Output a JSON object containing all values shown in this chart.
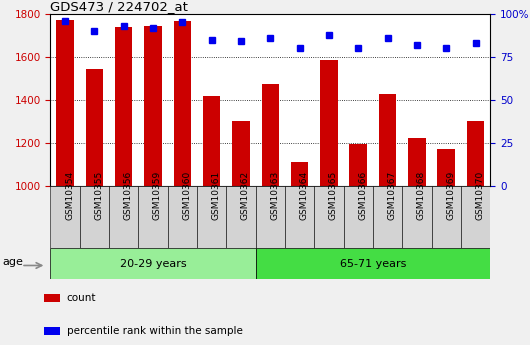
{
  "title": "GDS473 / 224702_at",
  "samples": [
    "GSM10354",
    "GSM10355",
    "GSM10356",
    "GSM10359",
    "GSM10360",
    "GSM10361",
    "GSM10362",
    "GSM10363",
    "GSM10364",
    "GSM10365",
    "GSM10366",
    "GSM10367",
    "GSM10368",
    "GSM10369",
    "GSM10370"
  ],
  "counts": [
    1770,
    1545,
    1740,
    1745,
    1765,
    1420,
    1305,
    1475,
    1115,
    1585,
    1195,
    1430,
    1225,
    1175,
    1305
  ],
  "percentile_ranks": [
    96,
    90,
    93,
    92,
    95,
    85,
    84,
    86,
    80,
    88,
    80,
    86,
    82,
    80,
    83
  ],
  "groups": [
    {
      "label": "20-29 years",
      "start": 0,
      "end": 7,
      "color": "#98EE98"
    },
    {
      "label": "65-71 years",
      "start": 7,
      "end": 15,
      "color": "#44DD44"
    }
  ],
  "ylim_left": [
    1000,
    1800
  ],
  "ylim_right": [
    0,
    100
  ],
  "yticks_left": [
    1000,
    1200,
    1400,
    1600,
    1800
  ],
  "yticks_right": [
    0,
    25,
    50,
    75,
    100
  ],
  "ytick_labels_right": [
    "0",
    "25",
    "50",
    "75",
    "100%"
  ],
  "bar_color": "#CC0000",
  "dot_color": "#0000EE",
  "bar_bottom": 1000,
  "right_axis_color": "#0000CC",
  "left_axis_color": "#CC0000",
  "plot_bg_color": "#FFFFFF",
  "fig_bg_color": "#F0F0F0",
  "cell_bg_color": "#D3D3D3",
  "legend_items": [
    {
      "label": "count",
      "color": "#CC0000"
    },
    {
      "label": "percentile rank within the sample",
      "color": "#0000EE"
    }
  ],
  "age_label": "age"
}
